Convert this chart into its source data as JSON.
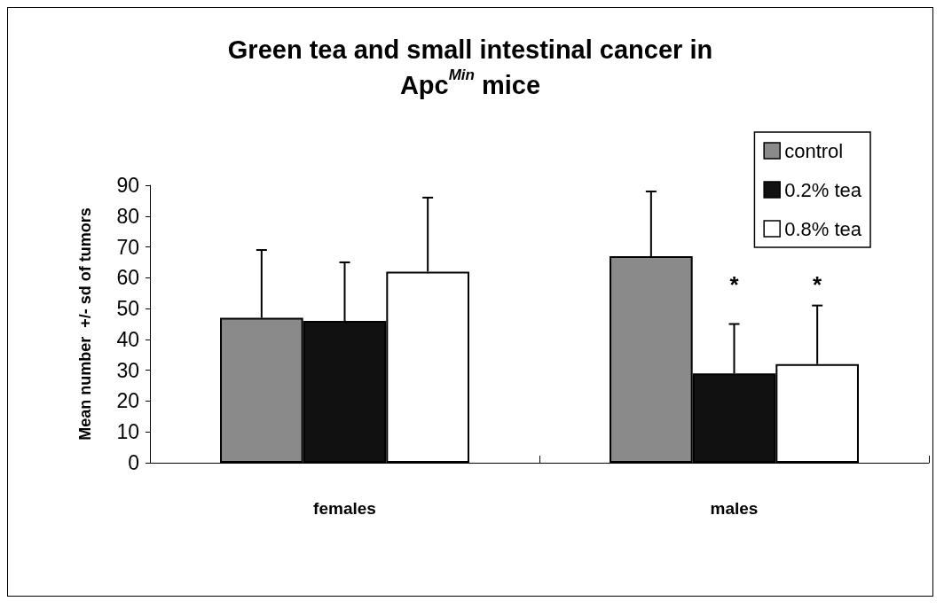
{
  "chart_data": {
    "type": "bar",
    "title": "Green tea and small intestinal cancer in\nApc$^{Min}$ mice",
    "ylabel": "Mean number  +/- sd of tumors",
    "categories": [
      "females",
      "males"
    ],
    "series": [
      {
        "name": "control",
        "color": "#8a8a8a",
        "values": [
          47,
          67
        ],
        "errors": [
          [
            47,
            69
          ],
          [
            67,
            88
          ]
        ]
      },
      {
        "name": "0.2% tea",
        "color": "#111111",
        "values": [
          46,
          29
        ],
        "errors": [
          [
            46,
            65
          ],
          [
            29,
            45
          ]
        ]
      },
      {
        "name": "0.8% tea",
        "color": "#ffffff",
        "values": [
          62,
          32
        ],
        "errors": [
          [
            62,
            86
          ],
          [
            32,
            51
          ]
        ]
      }
    ],
    "annotations": [
      "*",
      "*"
    ],
    "ylim": [
      0,
      90
    ],
    "yticks": [
      0,
      10,
      20,
      30,
      40,
      50,
      60,
      70,
      80,
      90
    ],
    "grid": false,
    "legend": "top right"
  }
}
